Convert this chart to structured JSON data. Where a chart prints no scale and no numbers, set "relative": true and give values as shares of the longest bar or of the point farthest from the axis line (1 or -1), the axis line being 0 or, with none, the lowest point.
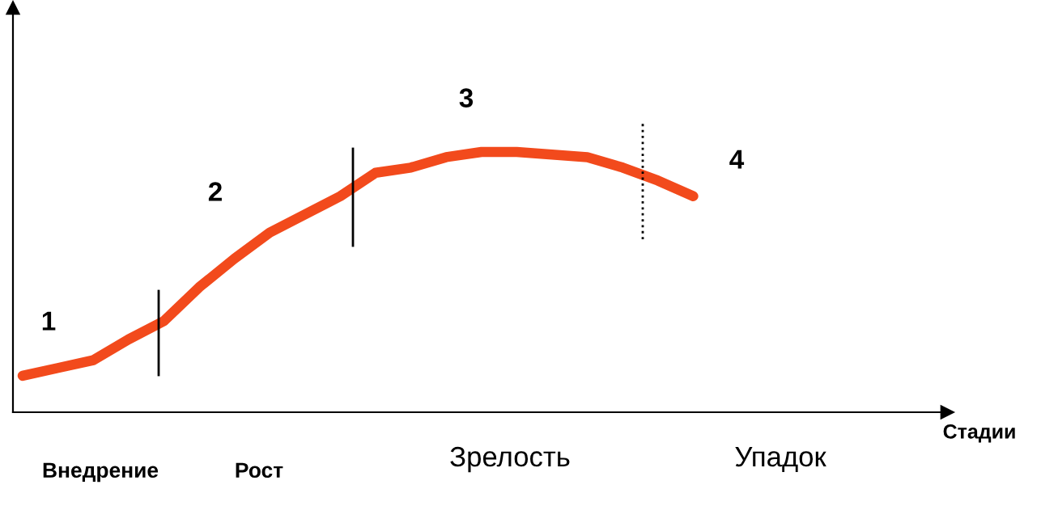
{
  "chart_data": {
    "type": "line",
    "relative": true,
    "categories": [
      null,
      null,
      null,
      null,
      null,
      null,
      null,
      null,
      null,
      null,
      null,
      null,
      null,
      null,
      null,
      null,
      null,
      null,
      null,
      null
    ],
    "series": [
      {
        "color": "#f24a1c",
        "values": [
          0.14,
          0.17,
          0.2,
          0.28,
          0.35,
          0.48,
          0.59,
          0.69,
          0.76,
          0.83,
          0.92,
          0.94,
          0.98,
          1,
          1,
          0.99,
          0.98,
          0.94,
          0.89,
          0.83
        ]
      }
    ],
    "annotations": [
      "1",
      "2",
      "3",
      "4",
      "Внедрение",
      "Рост",
      "Зрелость",
      "Упадок",
      "Стадии"
    ],
    "grid": false,
    "legend": false,
    "marker": "none",
    "line_style": "solid"
  }
}
